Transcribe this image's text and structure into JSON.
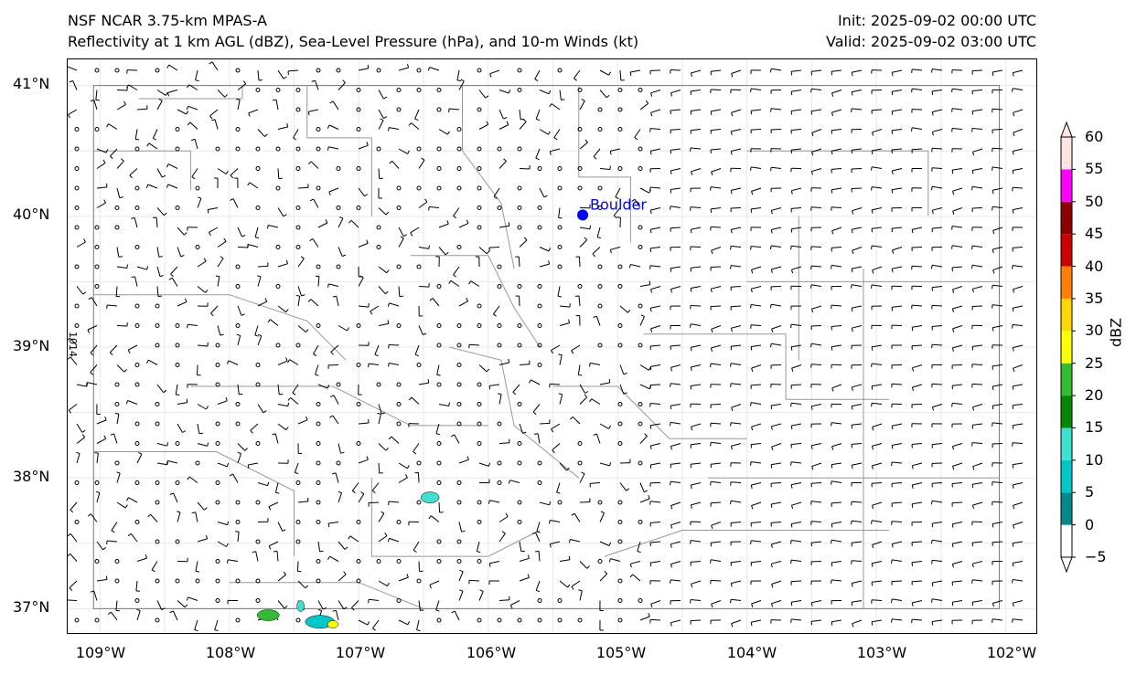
{
  "titles": {
    "left_line1": "NSF NCAR 3.75-km MPAS-A",
    "left_line2": "Reflectivity at 1 km AGL (dBZ), Sea-Level Pressure (hPa), and 10-m Winds (kt)",
    "right_line1": "Init: 2025-09-02 00:00 UTC",
    "right_line2": "Valid: 2025-09-02 03:00 UTC"
  },
  "map": {
    "lat_labels": [
      "41°N",
      "40°N",
      "39°N",
      "38°N",
      "37°N"
    ],
    "lon_labels": [
      "109°W",
      "108°W",
      "107°W",
      "106°W",
      "105°W",
      "104°W",
      "103°W",
      "102°W"
    ],
    "station": {
      "name": "Boulder",
      "lon": -105.27,
      "lat": 40.01,
      "color": "#0000ff"
    },
    "isobar_label": "1014",
    "extent": {
      "lon_min": -109.25,
      "lon_max": -101.75,
      "lat_min": 36.8,
      "lat_max": 41.2
    }
  },
  "colorbar": {
    "label": "dBZ",
    "ticks": [
      "60",
      "55",
      "50",
      "45",
      "40",
      "35",
      "30",
      "25",
      "20",
      "15",
      "10",
      "5",
      "0",
      "−5"
    ],
    "levels": [
      -5,
      0,
      5,
      10,
      15,
      20,
      25,
      30,
      35,
      40,
      45,
      50,
      55,
      60
    ],
    "colors": [
      "#ffffff",
      "#00888a",
      "#00c8c8",
      "#40e0d0",
      "#008800",
      "#33bb33",
      "#ffff00",
      "#ffd700",
      "#ff8000",
      "#cc0000",
      "#8b0000",
      "#ff00ff",
      "#ffe4e1"
    ]
  }
}
